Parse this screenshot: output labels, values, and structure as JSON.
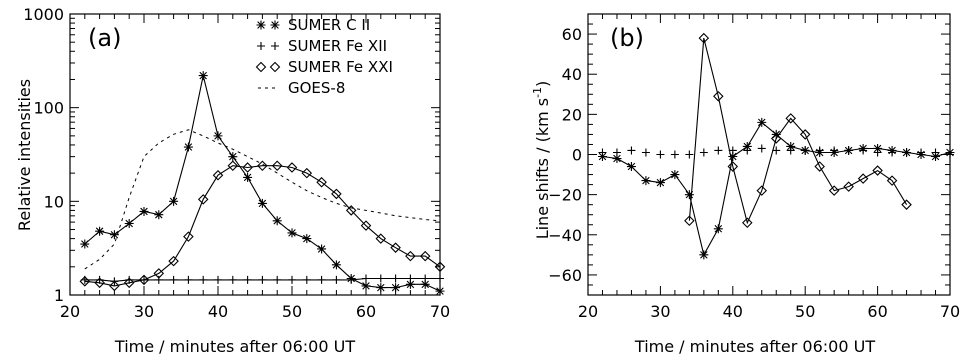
{
  "chart_data": [
    {
      "type": "line",
      "panel_label": "(a)",
      "xlabel": "Time / minutes after 06:00 UT",
      "ylabel": "Relative intensities",
      "xlim": [
        20,
        70
      ],
      "ylim": [
        1,
        1000
      ],
      "yscale": "log",
      "x_ticks": [
        20,
        30,
        40,
        50,
        60,
        70
      ],
      "y_ticks": [
        1,
        10,
        100,
        1000
      ],
      "y_tick_labels": [
        "1",
        "10",
        "100",
        "1000"
      ],
      "legend_position": "top-right",
      "series": [
        {
          "name": "SUMER C II",
          "marker": "star",
          "line": "solid",
          "x": [
            22,
            24,
            26,
            28,
            30,
            32,
            34,
            36,
            38,
            40,
            42,
            44,
            46,
            48,
            50,
            52,
            54,
            56,
            58,
            60,
            62,
            64,
            66,
            68,
            70
          ],
          "y": [
            3.5,
            4.8,
            4.4,
            5.8,
            7.8,
            7.2,
            10,
            38,
            220,
            50,
            30,
            18,
            9.5,
            6.2,
            4.6,
            4.0,
            3.1,
            2.1,
            1.5,
            1.25,
            1.2,
            1.2,
            1.3,
            1.3,
            1.1
          ]
        },
        {
          "name": "SUMER Fe XII",
          "marker": "plus",
          "line": "solid",
          "x": [
            22,
            24,
            26,
            28,
            30,
            32,
            34,
            36,
            38,
            40,
            42,
            44,
            46,
            48,
            50,
            52,
            54,
            56,
            58,
            60,
            62,
            64,
            66,
            68,
            70
          ],
          "y": [
            1.45,
            1.45,
            1.4,
            1.45,
            1.45,
            1.45,
            1.45,
            1.45,
            1.45,
            1.45,
            1.45,
            1.45,
            1.45,
            1.45,
            1.45,
            1.45,
            1.45,
            1.45,
            1.45,
            1.5,
            1.5,
            1.5,
            1.5,
            1.5,
            1.5
          ]
        },
        {
          "name": "SUMER Fe XXI",
          "marker": "diamond",
          "line": "solid",
          "x": [
            22,
            24,
            26,
            28,
            30,
            32,
            34,
            36,
            38,
            40,
            42,
            44,
            46,
            48,
            50,
            52,
            54,
            56,
            58,
            60,
            62,
            64,
            66,
            68,
            70
          ],
          "y": [
            1.4,
            1.35,
            1.25,
            1.35,
            1.45,
            1.7,
            2.3,
            4.2,
            10.5,
            19,
            24,
            23,
            24,
            24,
            23,
            20,
            16,
            12,
            8,
            5.5,
            4.0,
            3.2,
            2.6,
            2.6,
            2.0
          ]
        },
        {
          "name": "GOES-8",
          "marker": "none",
          "line": "dashed",
          "x": [
            22,
            24,
            26,
            28,
            30,
            32,
            34,
            36,
            38,
            40,
            42,
            44,
            46,
            48,
            50,
            52,
            54,
            56,
            58,
            60,
            62,
            64,
            66,
            68,
            70
          ],
          "y": [
            1.9,
            2.4,
            3.5,
            11,
            30,
            42,
            52,
            58,
            50,
            42,
            36,
            30,
            25,
            20,
            16,
            13,
            11,
            9.5,
            8.5,
            8,
            7.5,
            7.0,
            6.7,
            6.4,
            6.2
          ]
        }
      ]
    },
    {
      "type": "line",
      "panel_label": "(b)",
      "xlabel": "Time / minutes after 06:00 UT",
      "ylabel_main": "Line shifts / (km s",
      "ylabel_sup": "-1",
      "ylabel_end": ")",
      "xlim": [
        20,
        70
      ],
      "ylim": [
        -70,
        70
      ],
      "yscale": "linear",
      "x_ticks": [
        20,
        30,
        40,
        50,
        60,
        70
      ],
      "y_ticks": [
        -60,
        -40,
        -20,
        0,
        20,
        40,
        60
      ],
      "series": [
        {
          "name": "SUMER C II",
          "marker": "star",
          "line": "solid",
          "x": [
            22,
            24,
            26,
            28,
            30,
            32,
            34,
            36,
            38,
            40,
            42,
            44,
            46,
            48,
            50,
            52,
            54,
            56,
            58,
            60,
            62,
            64,
            66,
            68,
            70
          ],
          "y": [
            -1,
            -2,
            -6,
            -13,
            -14,
            -10,
            -20,
            -50,
            -37,
            -1,
            4,
            16,
            10,
            4,
            2,
            1,
            1,
            2,
            3,
            3,
            2,
            1,
            0,
            -1,
            1
          ]
        },
        {
          "name": "SUMER Fe XII",
          "marker": "plus",
          "line": "none",
          "x": [
            22,
            24,
            26,
            28,
            30,
            32,
            34,
            36,
            38,
            40,
            42,
            44,
            46,
            48,
            50,
            52,
            54,
            56,
            58,
            60,
            62,
            64,
            66,
            68,
            70
          ],
          "y": [
            1,
            1,
            2,
            1,
            0,
            0,
            0,
            1,
            2,
            2,
            2,
            3,
            2,
            2,
            2,
            2,
            2,
            2,
            2,
            1,
            1,
            1,
            1,
            1,
            0
          ]
        },
        {
          "name": "SUMER Fe XXI",
          "marker": "diamond",
          "line": "solid",
          "x": [
            34,
            36,
            38,
            40,
            42,
            44,
            46,
            48,
            50,
            52,
            54,
            56,
            58,
            60,
            62,
            64
          ],
          "y": [
            -33,
            58,
            29,
            -6,
            -34,
            -18,
            8,
            18,
            10,
            -6,
            -18,
            -16,
            -12,
            -8,
            -13,
            -25
          ]
        }
      ]
    }
  ]
}
